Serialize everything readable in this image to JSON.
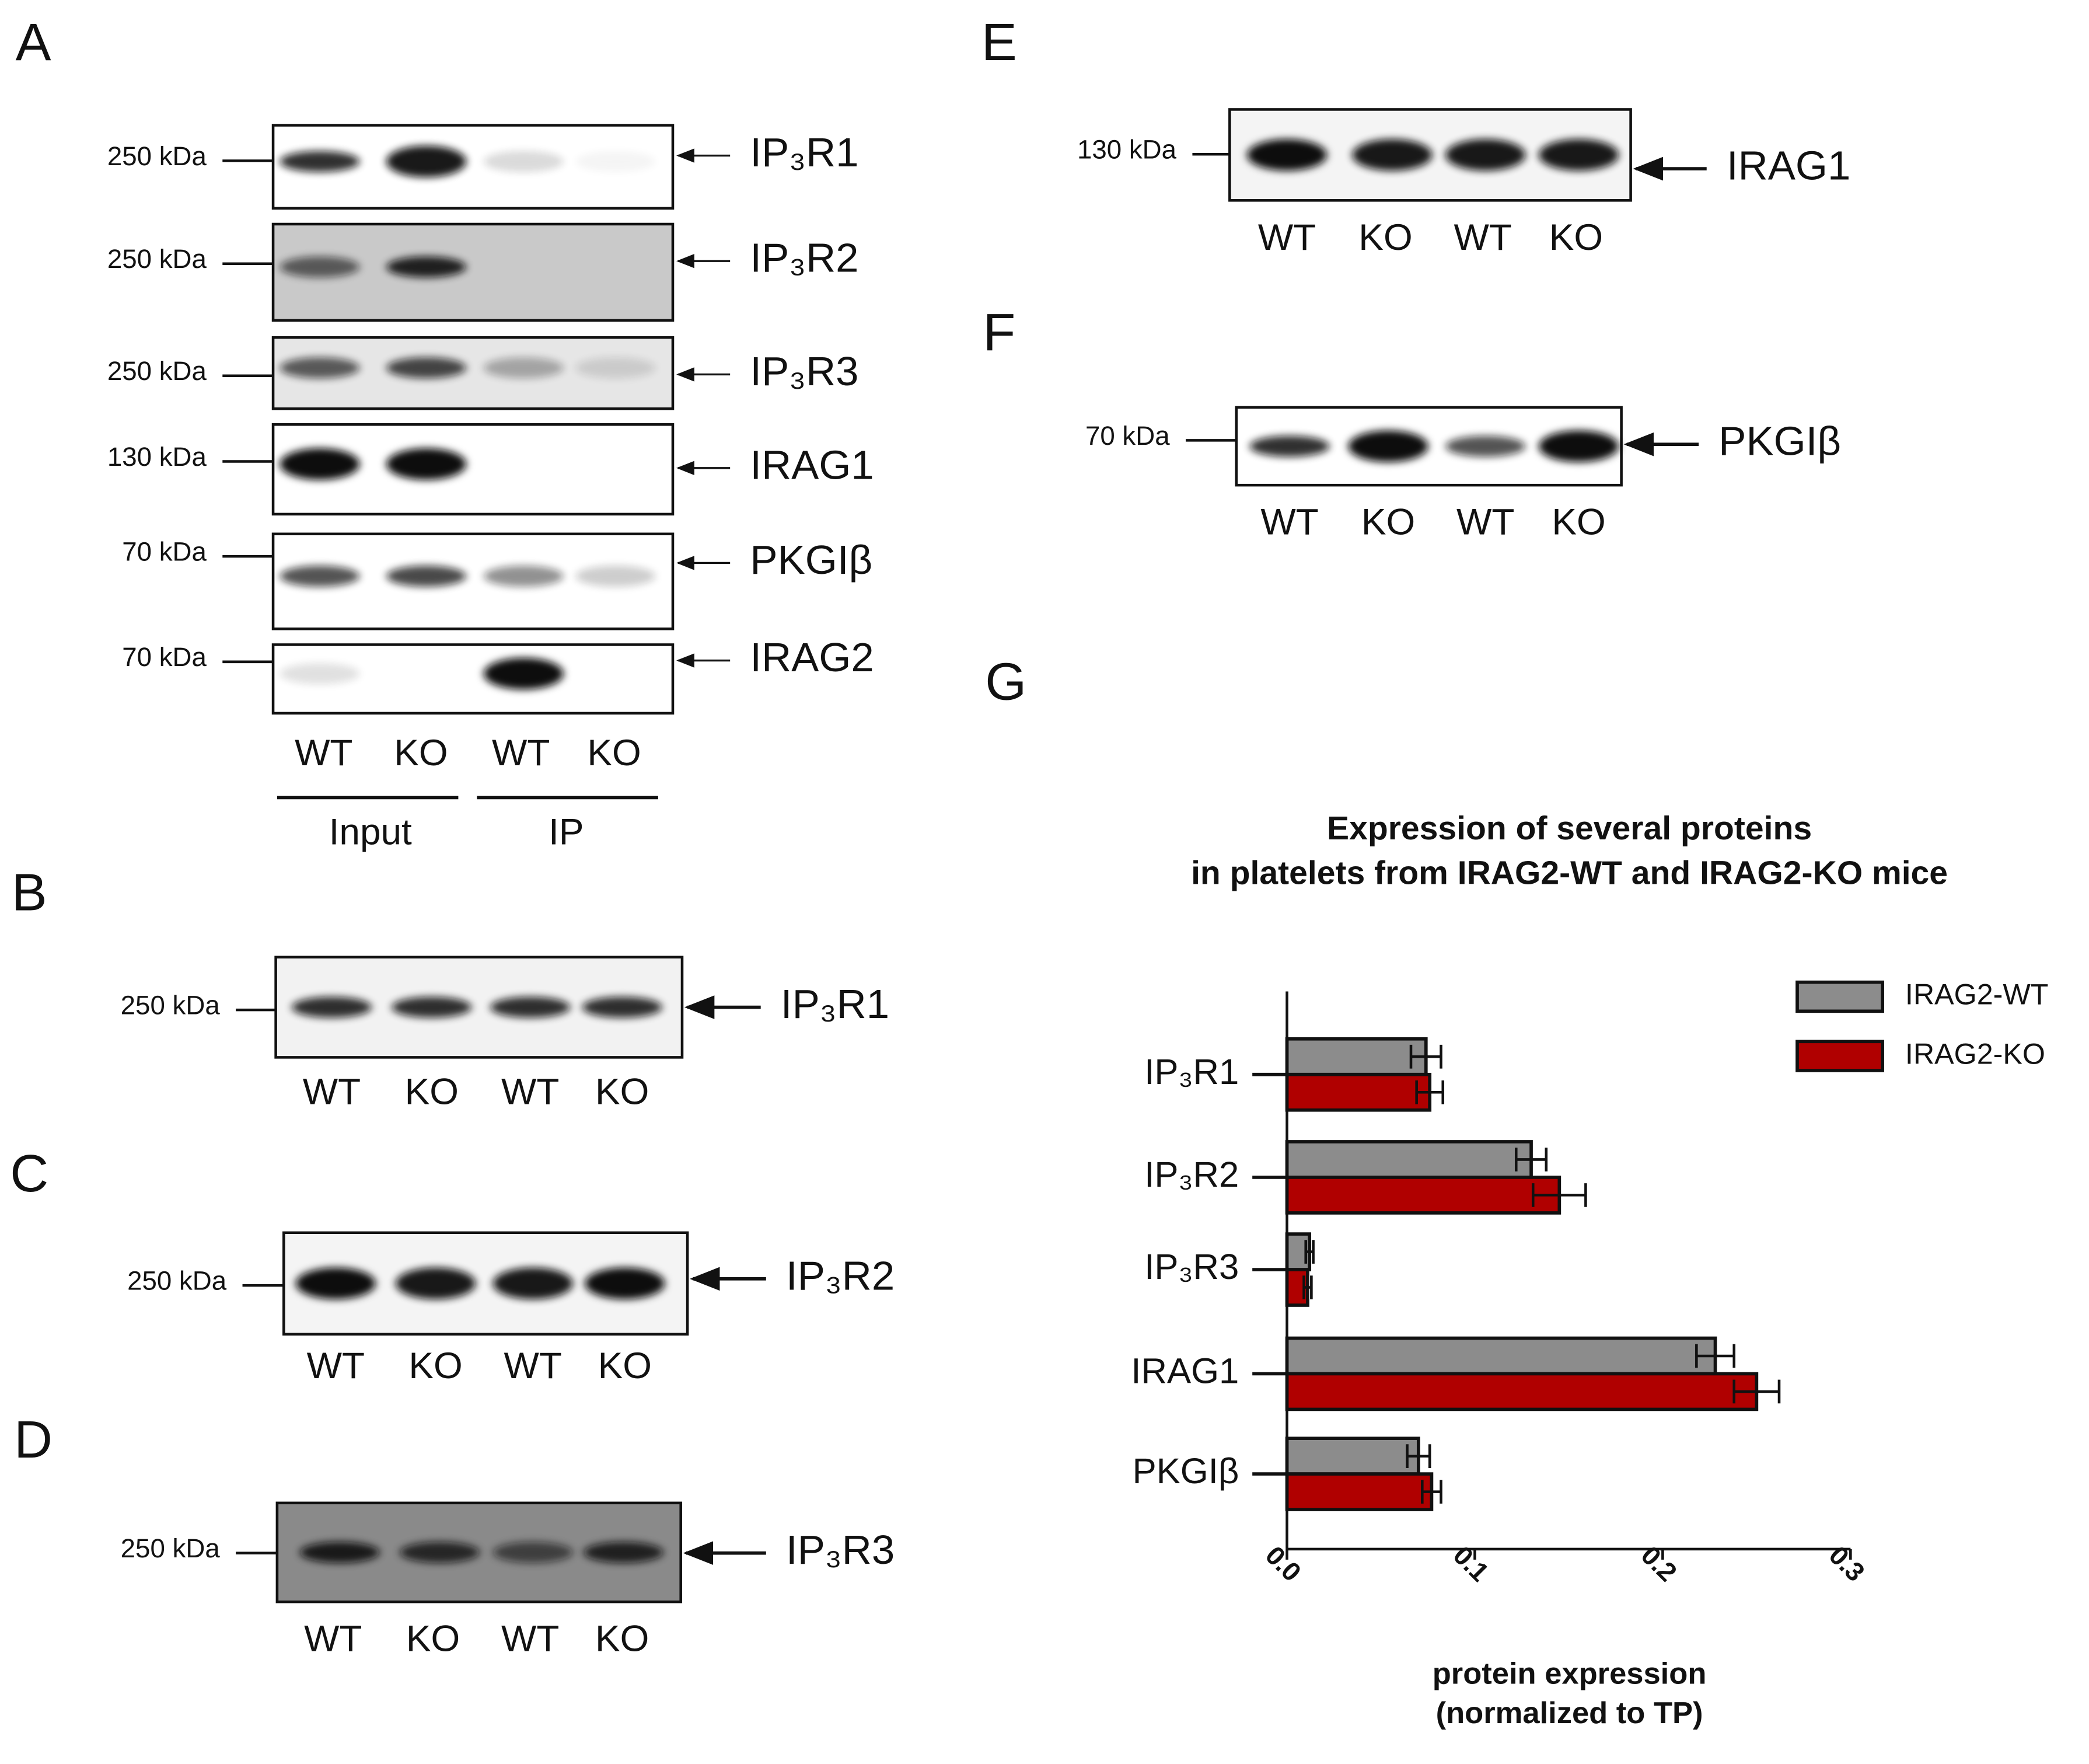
{
  "panels": [
    {
      "letter": "A",
      "rows": [
        {
          "marker": "250 kDa",
          "protein": "IP₃R1"
        },
        {
          "marker": "250 kDa",
          "protein": "IP₃R2"
        },
        {
          "marker": "250 kDa",
          "protein": "IP₃R3"
        },
        {
          "marker": "130 kDa",
          "protein": "IRAG1"
        },
        {
          "marker": "70 kDa",
          "protein": "PKGIβ"
        },
        {
          "marker": "70 kDa",
          "protein": "IRAG2"
        }
      ],
      "lanes": [
        "WT",
        "KO",
        "WT",
        "KO"
      ],
      "groups": [
        "Input",
        "IP"
      ]
    },
    {
      "letter": "B",
      "rows": [
        {
          "marker": "250 kDa",
          "protein": "IP₃R1"
        }
      ],
      "lanes": [
        "WT",
        "KO",
        "WT",
        "KO"
      ]
    },
    {
      "letter": "C",
      "rows": [
        {
          "marker": "250 kDa",
          "protein": "IP₃R2"
        }
      ],
      "lanes": [
        "WT",
        "KO",
        "WT",
        "KO"
      ]
    },
    {
      "letter": "D",
      "rows": [
        {
          "marker": "250 kDa",
          "protein": "IP₃R3"
        }
      ],
      "lanes": [
        "WT",
        "KO",
        "WT",
        "KO"
      ]
    },
    {
      "letter": "E",
      "rows": [
        {
          "marker": "130 kDa",
          "protein": "IRAG1"
        }
      ],
      "lanes": [
        "WT",
        "KO",
        "WT",
        "KO"
      ]
    },
    {
      "letter": "F",
      "rows": [
        {
          "marker": "70 kDa",
          "protein": "PKGIβ"
        }
      ],
      "lanes": [
        "WT",
        "KO",
        "WT",
        "KO"
      ]
    },
    {
      "letter": "G"
    }
  ],
  "chart_data": {
    "type": "hbar",
    "title": [
      "Expression of several proteins",
      "in platelets from IRAG2-WT and IRAG2-KO mice"
    ],
    "x_label": [
      "protein expression",
      "(normalized to TP)"
    ],
    "categories": [
      "IP₃R1",
      "IP₃R2",
      "IP₃R3",
      "IRAG1",
      "PKGIβ"
    ],
    "series": [
      {
        "name": "IRAG2-WT",
        "color": "#8c8c8c",
        "values": [
          0.074,
          0.13,
          0.012,
          0.228,
          0.07
        ],
        "errors": [
          0.008,
          0.008,
          0.002,
          0.01,
          0.006
        ]
      },
      {
        "name": "IRAG2-KO",
        "color": "#b00000",
        "values": [
          0.076,
          0.145,
          0.011,
          0.25,
          0.077
        ],
        "errors": [
          0.007,
          0.014,
          0.002,
          0.012,
          0.005
        ]
      }
    ],
    "xlim": [
      0,
      0.3
    ],
    "xticks": [
      {
        "value": 0,
        "label": "0.0"
      },
      0.1,
      0.2,
      0.3
    ],
    "legend": "top-right"
  }
}
